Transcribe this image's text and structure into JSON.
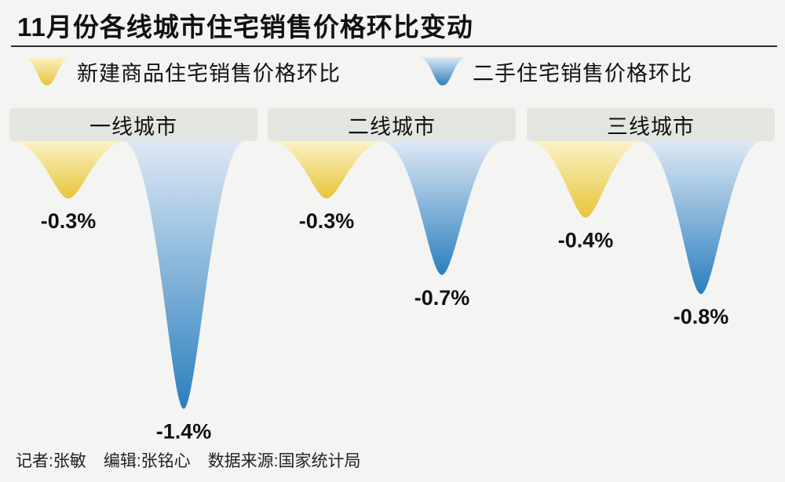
{
  "title": "11月份各线城市住宅销售价格环比变动",
  "legend": [
    {
      "label": "新建商品住宅销售价格环比",
      "color_top": "#fbf2c6",
      "color_bottom": "#e7c53a"
    },
    {
      "label": "二手住宅销售价格环比",
      "color_top": "#dde8f4",
      "color_bottom": "#2b7fbf"
    }
  ],
  "chart_data": {
    "type": "bar",
    "categories": [
      "一线城市",
      "二线城市",
      "三线城市"
    ],
    "series": [
      {
        "name": "新建商品住宅销售价格环比",
        "values": [
          -0.3,
          -0.3,
          -0.4
        ],
        "labels": [
          "-0.3%",
          "-0.3%",
          "-0.4%"
        ]
      },
      {
        "name": "二手住宅销售价格环比",
        "values": [
          -1.4,
          -0.7,
          -0.8
        ],
        "labels": [
          "-1.4%",
          "-0.7%",
          "-0.8%"
        ]
      }
    ],
    "unit": "%"
  },
  "footer": {
    "reporter": "记者:张敏",
    "editor": "编辑:张铭心",
    "source": "数据来源:国家统计局"
  }
}
